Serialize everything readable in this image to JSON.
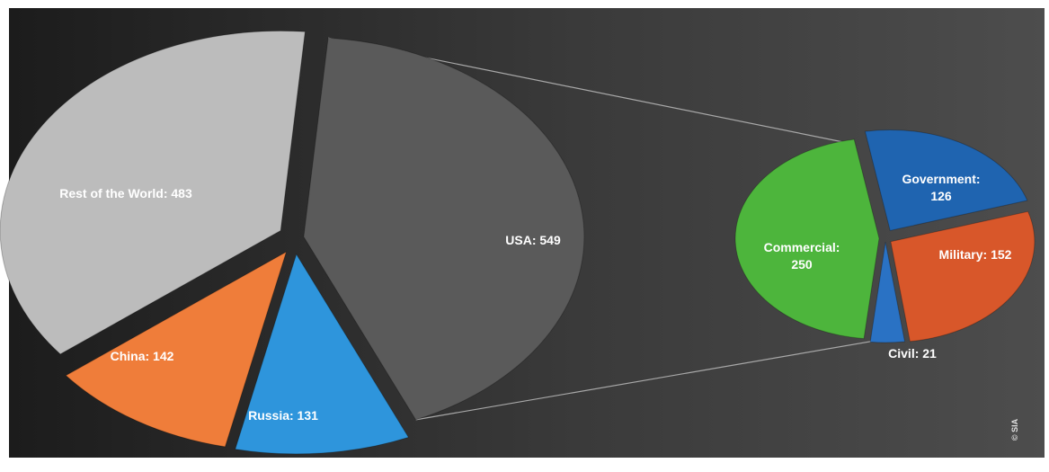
{
  "chart_data": [
    {
      "type": "pie",
      "style": "exploded pie with bar-of-pie connectors",
      "slices": [
        {
          "label": "USA",
          "value": 549,
          "display": "USA: 549",
          "color": "#5a5a5a"
        },
        {
          "label": "Russia",
          "value": 131,
          "display": "Russia: 131",
          "color": "#2e95dc"
        },
        {
          "label": "China",
          "value": 142,
          "display": "China: 142",
          "color": "#ef7d3a"
        },
        {
          "label": "Rest of the World",
          "value": 483,
          "display": "Rest of the World: 483",
          "color": "#bcbcbc"
        }
      ]
    },
    {
      "type": "pie",
      "detail_of": "USA",
      "slices": [
        {
          "label": "Government",
          "value": 126,
          "display": [
            "Government:",
            "126"
          ],
          "color": "#1f64b0"
        },
        {
          "label": "Military",
          "value": 152,
          "display": "Military: 152",
          "color": "#d8572a"
        },
        {
          "label": "Civil",
          "value": 21,
          "display": "Civil: 21",
          "color": "#2a72c4"
        },
        {
          "label": "Commercial",
          "value": 250,
          "display": [
            "Commercial:",
            "250"
          ],
          "color": "#4db53c"
        }
      ]
    }
  ],
  "watermark": "© SIA",
  "colors": {
    "background_dark": "#222222",
    "background_light": "#4a4a4a",
    "connector": "#a8a8a8"
  }
}
